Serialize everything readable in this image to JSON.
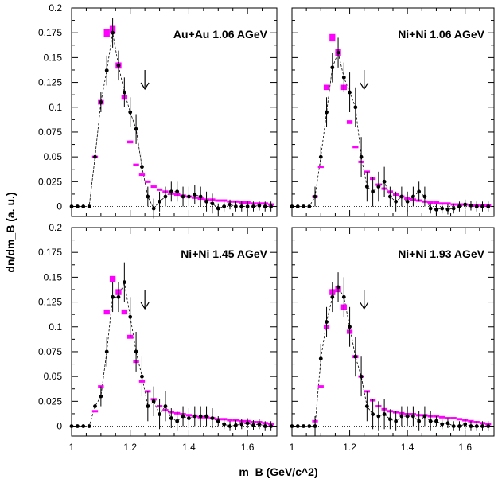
{
  "chart_data": {
    "type": "scatter",
    "xlabel": "m_B (GeV/c^2)",
    "ylabel": "dn/dm_B (a. u.)",
    "xlim": [
      1.0,
      1.7
    ],
    "ylim": [
      -0.01,
      0.2
    ],
    "x_ticks": [
      "1",
      "1.2",
      "1.4",
      "1.6"
    ],
    "y_ticks": [
      "0",
      "0.025",
      "0.05",
      "0.075",
      "0.1",
      "0.125",
      "0.15",
      "0.175",
      "0.2"
    ],
    "colors": {
      "model": "#ff00ff",
      "data": "#000000"
    },
    "arrow_at": 1.25,
    "panels": [
      {
        "label": "Au+Au  1.06 AGeV",
        "data_x": [
          1.0,
          1.02,
          1.04,
          1.06,
          1.08,
          1.1,
          1.12,
          1.14,
          1.16,
          1.18,
          1.2,
          1.22,
          1.24,
          1.26,
          1.28,
          1.3,
          1.32,
          1.34,
          1.36,
          1.38,
          1.4,
          1.42,
          1.44,
          1.46,
          1.48,
          1.5,
          1.52,
          1.54,
          1.56,
          1.58,
          1.6,
          1.62,
          1.64,
          1.66,
          1.68
        ],
        "data_y": [
          0,
          0,
          0,
          0,
          0.05,
          0.105,
          0.137,
          0.175,
          0.142,
          0.115,
          0.095,
          0.078,
          0.04,
          0.01,
          -0.002,
          0.005,
          0.01,
          0.015,
          0.015,
          0.01,
          0.01,
          0.012,
          0.01,
          0.005,
          0.003,
          -0.002,
          0.0,
          0.002,
          0,
          0,
          0,
          0,
          0.001,
          0,
          0
        ],
        "data_err": [
          0,
          0,
          0,
          0,
          0.01,
          0.01,
          0.015,
          0.015,
          0.015,
          0.015,
          0.015,
          0.015,
          0.015,
          0.01,
          0.01,
          0.01,
          0.01,
          0.01,
          0.01,
          0.01,
          0.01,
          0.01,
          0.01,
          0.01,
          0.01,
          0.005,
          0.005,
          0.005,
          0.005,
          0.005,
          0.005,
          0.005,
          0.005,
          0.005,
          0.005
        ],
        "model_x": [
          1.08,
          1.1,
          1.12,
          1.14,
          1.16,
          1.18,
          1.2,
          1.22,
          1.24,
          1.26,
          1.28,
          1.3,
          1.32,
          1.34,
          1.36,
          1.38,
          1.4,
          1.42,
          1.44,
          1.46,
          1.48,
          1.5,
          1.52,
          1.54,
          1.56,
          1.58,
          1.6,
          1.62,
          1.64,
          1.66,
          1.68
        ],
        "model_y": [
          0.05,
          0.105,
          0.175,
          0.178,
          0.142,
          0.11,
          0.065,
          0.042,
          0.032,
          0.025,
          0.02,
          0.017,
          0.015,
          0.013,
          0.012,
          0.011,
          0.01,
          0.009,
          0.008,
          0.007,
          0.007,
          0.006,
          0.006,
          0.005,
          0.005,
          0.004,
          0.004,
          0.003,
          0.003,
          0.003,
          0.002
        ]
      },
      {
        "label": "Ni+Ni  1.06 AGeV",
        "data_x": [
          1.0,
          1.02,
          1.04,
          1.06,
          1.08,
          1.1,
          1.12,
          1.14,
          1.16,
          1.18,
          1.2,
          1.22,
          1.24,
          1.26,
          1.28,
          1.3,
          1.32,
          1.34,
          1.36,
          1.38,
          1.4,
          1.42,
          1.44,
          1.46,
          1.48,
          1.5,
          1.52,
          1.54,
          1.56,
          1.58,
          1.6,
          1.62,
          1.64,
          1.66,
          1.68
        ],
        "data_y": [
          0,
          0,
          0,
          0,
          0.01,
          0.05,
          0.095,
          0.14,
          0.155,
          0.13,
          0.115,
          0.1,
          0.05,
          0.02,
          0.015,
          0.02,
          0.025,
          0.01,
          0.005,
          0.01,
          0.005,
          0.01,
          0.015,
          0.01,
          -0.002,
          -0.003,
          -0.002,
          -0.003,
          -0.002,
          0.0,
          0.002,
          0.001,
          0,
          0,
          0
        ],
        "data_err": [
          0,
          0,
          0,
          0,
          0.01,
          0.01,
          0.015,
          0.015,
          0.015,
          0.015,
          0.02,
          0.02,
          0.02,
          0.015,
          0.015,
          0.015,
          0.015,
          0.01,
          0.01,
          0.01,
          0.01,
          0.01,
          0.01,
          0.01,
          0.005,
          0.005,
          0.005,
          0.005,
          0.005,
          0.005,
          0.005,
          0.005,
          0.005,
          0.005,
          0.005
        ],
        "model_x": [
          1.08,
          1.1,
          1.12,
          1.14,
          1.16,
          1.18,
          1.2,
          1.22,
          1.24,
          1.26,
          1.28,
          1.3,
          1.32,
          1.34,
          1.36,
          1.38,
          1.4,
          1.42,
          1.44,
          1.46,
          1.48,
          1.5,
          1.52,
          1.54,
          1.56,
          1.58,
          1.6,
          1.62,
          1.64,
          1.66,
          1.68
        ],
        "model_y": [
          0.01,
          0.04,
          0.12,
          0.17,
          0.155,
          0.12,
          0.085,
          0.06,
          0.045,
          0.035,
          0.028,
          0.022,
          0.018,
          0.015,
          0.012,
          0.01,
          0.008,
          0.007,
          0.006,
          0.005,
          0.004,
          0.004,
          0.003,
          0.003,
          0.002,
          0.002,
          0.002,
          0.001,
          0.001,
          0.001,
          0.001
        ]
      },
      {
        "label": "Ni+Ni  1.45 AGeV",
        "data_x": [
          1.0,
          1.02,
          1.04,
          1.06,
          1.08,
          1.1,
          1.12,
          1.14,
          1.16,
          1.18,
          1.2,
          1.22,
          1.24,
          1.26,
          1.28,
          1.3,
          1.32,
          1.34,
          1.36,
          1.38,
          1.4,
          1.42,
          1.44,
          1.46,
          1.48,
          1.5,
          1.52,
          1.54,
          1.56,
          1.58,
          1.6,
          1.62,
          1.64,
          1.66,
          1.68
        ],
        "data_y": [
          0,
          0,
          0,
          0,
          0.02,
          0.03,
          0.075,
          0.13,
          0.13,
          0.145,
          0.11,
          0.075,
          0.05,
          0.02,
          0.025,
          0.012,
          0.02,
          0.008,
          0.005,
          0.01,
          0.008,
          0.01,
          0.01,
          0.01,
          0.008,
          0.005,
          0.002,
          0.0,
          0.001,
          0.002,
          0.003,
          0.001,
          0.002,
          0,
          0
        ],
        "data_err": [
          0,
          0,
          0,
          0,
          0.01,
          0.01,
          0.015,
          0.015,
          0.015,
          0.02,
          0.02,
          0.02,
          0.02,
          0.015,
          0.015,
          0.015,
          0.015,
          0.01,
          0.01,
          0.01,
          0.01,
          0.01,
          0.01,
          0.01,
          0.01,
          0.005,
          0.005,
          0.005,
          0.005,
          0.005,
          0.005,
          0.005,
          0.005,
          0.005,
          0.005
        ],
        "model_x": [
          1.08,
          1.1,
          1.12,
          1.14,
          1.16,
          1.18,
          1.2,
          1.22,
          1.24,
          1.26,
          1.28,
          1.3,
          1.32,
          1.34,
          1.36,
          1.38,
          1.4,
          1.42,
          1.44,
          1.46,
          1.48,
          1.5,
          1.52,
          1.54,
          1.56,
          1.58,
          1.6,
          1.62,
          1.64,
          1.66,
          1.68
        ],
        "model_y": [
          0.015,
          0.04,
          0.115,
          0.148,
          0.135,
          0.115,
          0.09,
          0.065,
          0.045,
          0.035,
          0.027,
          0.02,
          0.016,
          0.014,
          0.013,
          0.012,
          0.011,
          0.01,
          0.009,
          0.009,
          0.008,
          0.007,
          0.007,
          0.006,
          0.006,
          0.005,
          0.005,
          0.004,
          0.004,
          0.003,
          0.002
        ]
      },
      {
        "label": "Ni+Ni  1.93 AGeV",
        "data_x": [
          1.0,
          1.02,
          1.04,
          1.06,
          1.08,
          1.1,
          1.12,
          1.14,
          1.16,
          1.18,
          1.2,
          1.22,
          1.24,
          1.26,
          1.28,
          1.3,
          1.32,
          1.34,
          1.36,
          1.38,
          1.4,
          1.42,
          1.44,
          1.46,
          1.48,
          1.5,
          1.52,
          1.54,
          1.56,
          1.58,
          1.6,
          1.62,
          1.64,
          1.66,
          1.68
        ],
        "data_y": [
          0,
          0,
          0,
          0,
          0.0,
          0.068,
          0.105,
          0.13,
          0.14,
          0.13,
          0.1,
          0.07,
          0.05,
          0.02,
          0.012,
          0.01,
          0.012,
          0.007,
          0.005,
          0.01,
          0.01,
          0.01,
          0.005,
          0.01,
          0.005,
          0.005,
          0.002,
          0.003,
          0.0,
          0.0,
          0.002,
          0.0,
          0.0,
          0,
          0
        ],
        "data_err": [
          0,
          0,
          0,
          0,
          0.01,
          0.015,
          0.015,
          0.015,
          0.015,
          0.02,
          0.02,
          0.02,
          0.02,
          0.015,
          0.015,
          0.015,
          0.015,
          0.01,
          0.01,
          0.01,
          0.01,
          0.01,
          0.01,
          0.01,
          0.01,
          0.005,
          0.005,
          0.005,
          0.005,
          0.005,
          0.005,
          0.005,
          0.005,
          0.005,
          0.005
        ],
        "model_x": [
          1.08,
          1.1,
          1.12,
          1.14,
          1.16,
          1.18,
          1.2,
          1.22,
          1.24,
          1.26,
          1.28,
          1.3,
          1.32,
          1.34,
          1.36,
          1.38,
          1.4,
          1.42,
          1.44,
          1.46,
          1.48,
          1.5,
          1.52,
          1.54,
          1.56,
          1.58,
          1.6,
          1.62,
          1.64,
          1.66,
          1.68
        ],
        "model_y": [
          0.005,
          0.04,
          0.1,
          0.135,
          0.138,
          0.12,
          0.095,
          0.07,
          0.05,
          0.035,
          0.026,
          0.02,
          0.017,
          0.015,
          0.014,
          0.013,
          0.012,
          0.012,
          0.011,
          0.011,
          0.01,
          0.01,
          0.009,
          0.008,
          0.008,
          0.007,
          0.006,
          0.005,
          0.004,
          0.003,
          0.002
        ]
      }
    ]
  }
}
